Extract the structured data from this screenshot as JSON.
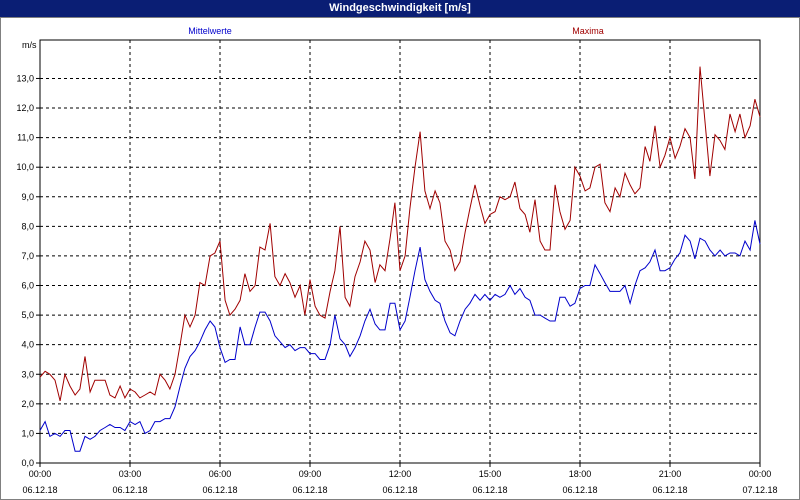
{
  "window": {
    "title": "Windgeschwindigkeit [m/s]"
  },
  "chart_data": {
    "type": "line",
    "title": "Windgeschwindigkeit [m/s]",
    "ylabel": "m/s",
    "xlabel": "",
    "ylim": [
      0,
      14
    ],
    "xlim": [
      0,
      24
    ],
    "grid": true,
    "y_ticks": [
      {
        "value": 0,
        "label": "0,0"
      },
      {
        "value": 1,
        "label": "1,0"
      },
      {
        "value": 2,
        "label": "2,0"
      },
      {
        "value": 3,
        "label": "3,0"
      },
      {
        "value": 4,
        "label": "4,0"
      },
      {
        "value": 5,
        "label": "5,0"
      },
      {
        "value": 6,
        "label": "6,0"
      },
      {
        "value": 7,
        "label": "7,0"
      },
      {
        "value": 8,
        "label": "8,0"
      },
      {
        "value": 9,
        "label": "9,0"
      },
      {
        "value": 10,
        "label": "10,0"
      },
      {
        "value": 11,
        "label": "11,0"
      },
      {
        "value": 12,
        "label": "12,0"
      },
      {
        "value": 13,
        "label": "13,0"
      }
    ],
    "x_ticks": [
      {
        "value": 0,
        "time": "00:00",
        "date": "06.12.18"
      },
      {
        "value": 3,
        "time": "03:00",
        "date": "06.12.18"
      },
      {
        "value": 6,
        "time": "06:00",
        "date": "06.12.18"
      },
      {
        "value": 9,
        "time": "09:00",
        "date": "06.12.18"
      },
      {
        "value": 12,
        "time": "12:00",
        "date": "06.12.18"
      },
      {
        "value": 15,
        "time": "15:00",
        "date": "06.12.18"
      },
      {
        "value": 18,
        "time": "18:00",
        "date": "06.12.18"
      },
      {
        "value": 21,
        "time": "21:00",
        "date": "06.12.18"
      },
      {
        "value": 24,
        "time": "00:00",
        "date": "07.12.18"
      }
    ],
    "series": [
      {
        "name": "Mittelwerte",
        "color": "#0000cc",
        "points": [
          [
            0,
            1.1
          ],
          [
            0.17,
            1.4
          ],
          [
            0.33,
            0.9
          ],
          [
            0.5,
            1.0
          ],
          [
            0.67,
            0.9
          ],
          [
            0.83,
            1.1
          ],
          [
            1,
            1.1
          ],
          [
            1.17,
            0.4
          ],
          [
            1.33,
            0.4
          ],
          [
            1.5,
            0.9
          ],
          [
            1.67,
            0.8
          ],
          [
            1.83,
            0.9
          ],
          [
            2,
            1.1
          ],
          [
            2.17,
            1.2
          ],
          [
            2.33,
            1.3
          ],
          [
            2.5,
            1.2
          ],
          [
            2.67,
            1.2
          ],
          [
            2.83,
            1.1
          ],
          [
            3,
            1.4
          ],
          [
            3.17,
            1.3
          ],
          [
            3.33,
            1.4
          ],
          [
            3.5,
            1.0
          ],
          [
            3.67,
            1.1
          ],
          [
            3.83,
            1.4
          ],
          [
            4,
            1.4
          ],
          [
            4.17,
            1.5
          ],
          [
            4.33,
            1.5
          ],
          [
            4.5,
            1.9
          ],
          [
            4.67,
            2.6
          ],
          [
            4.83,
            3.2
          ],
          [
            5,
            3.6
          ],
          [
            5.17,
            3.8
          ],
          [
            5.33,
            4.1
          ],
          [
            5.5,
            4.5
          ],
          [
            5.67,
            4.8
          ],
          [
            5.83,
            4.6
          ],
          [
            6,
            3.9
          ],
          [
            6.17,
            3.4
          ],
          [
            6.33,
            3.5
          ],
          [
            6.5,
            3.5
          ],
          [
            6.67,
            4.6
          ],
          [
            6.83,
            4.0
          ],
          [
            7,
            4.0
          ],
          [
            7.17,
            4.6
          ],
          [
            7.33,
            5.1
          ],
          [
            7.5,
            5.1
          ],
          [
            7.67,
            4.8
          ],
          [
            7.83,
            4.3
          ],
          [
            8,
            4.1
          ],
          [
            8.17,
            3.9
          ],
          [
            8.33,
            4.0
          ],
          [
            8.5,
            3.8
          ],
          [
            8.67,
            3.9
          ],
          [
            8.83,
            3.9
          ],
          [
            9,
            3.7
          ],
          [
            9.17,
            3.7
          ],
          [
            9.33,
            3.5
          ],
          [
            9.5,
            3.5
          ],
          [
            9.67,
            4.0
          ],
          [
            9.83,
            5.0
          ],
          [
            10,
            4.2
          ],
          [
            10.17,
            4.0
          ],
          [
            10.33,
            3.6
          ],
          [
            10.5,
            3.9
          ],
          [
            10.67,
            4.3
          ],
          [
            10.83,
            4.8
          ],
          [
            11,
            5.2
          ],
          [
            11.17,
            4.7
          ],
          [
            11.33,
            4.5
          ],
          [
            11.5,
            4.5
          ],
          [
            11.67,
            5.4
          ],
          [
            11.83,
            5.4
          ],
          [
            12,
            4.5
          ],
          [
            12.17,
            4.8
          ],
          [
            12.33,
            5.6
          ],
          [
            12.5,
            6.5
          ],
          [
            12.67,
            7.3
          ],
          [
            12.83,
            6.2
          ],
          [
            13,
            5.8
          ],
          [
            13.17,
            5.5
          ],
          [
            13.33,
            5.4
          ],
          [
            13.5,
            4.8
          ],
          [
            13.67,
            4.4
          ],
          [
            13.83,
            4.3
          ],
          [
            14,
            4.8
          ],
          [
            14.17,
            5.2
          ],
          [
            14.33,
            5.4
          ],
          [
            14.5,
            5.7
          ],
          [
            14.67,
            5.5
          ],
          [
            14.83,
            5.7
          ],
          [
            15,
            5.5
          ],
          [
            15.17,
            5.7
          ],
          [
            15.33,
            5.6
          ],
          [
            15.5,
            5.7
          ],
          [
            15.67,
            6.0
          ],
          [
            15.83,
            5.7
          ],
          [
            16,
            5.9
          ],
          [
            16.17,
            5.6
          ],
          [
            16.33,
            5.5
          ],
          [
            16.5,
            5.0
          ],
          [
            16.67,
            5.0
          ],
          [
            16.83,
            4.9
          ],
          [
            17,
            4.8
          ],
          [
            17.17,
            4.8
          ],
          [
            17.33,
            5.6
          ],
          [
            17.5,
            5.6
          ],
          [
            17.67,
            5.3
          ],
          [
            17.83,
            5.4
          ],
          [
            18,
            5.9
          ],
          [
            18.17,
            6.0
          ],
          [
            18.33,
            6.0
          ],
          [
            18.5,
            6.7
          ],
          [
            18.67,
            6.4
          ],
          [
            18.83,
            6.1
          ],
          [
            19,
            5.8
          ],
          [
            19.17,
            5.8
          ],
          [
            19.33,
            5.8
          ],
          [
            19.5,
            6.0
          ],
          [
            19.67,
            5.4
          ],
          [
            19.83,
            6.0
          ],
          [
            20,
            6.5
          ],
          [
            20.17,
            6.6
          ],
          [
            20.33,
            6.8
          ],
          [
            20.5,
            7.2
          ],
          [
            20.67,
            6.5
          ],
          [
            20.83,
            6.5
          ],
          [
            21,
            6.6
          ],
          [
            21.17,
            6.9
          ],
          [
            21.33,
            7.1
          ],
          [
            21.5,
            7.7
          ],
          [
            21.67,
            7.5
          ],
          [
            21.83,
            6.9
          ],
          [
            22,
            7.6
          ],
          [
            22.17,
            7.5
          ],
          [
            22.33,
            7.2
          ],
          [
            22.5,
            7.0
          ],
          [
            22.67,
            7.2
          ],
          [
            22.83,
            7.0
          ],
          [
            23,
            7.1
          ],
          [
            23.17,
            7.1
          ],
          [
            23.33,
            7.0
          ],
          [
            23.5,
            7.5
          ],
          [
            23.67,
            7.2
          ],
          [
            23.83,
            8.2
          ],
          [
            24,
            7.4
          ]
        ]
      },
      {
        "name": "Maxima",
        "color": "#a00000",
        "points": [
          [
            0,
            2.9
          ],
          [
            0.17,
            3.1
          ],
          [
            0.33,
            3.0
          ],
          [
            0.5,
            2.8
          ],
          [
            0.67,
            2.1
          ],
          [
            0.83,
            3.0
          ],
          [
            1,
            2.6
          ],
          [
            1.17,
            2.3
          ],
          [
            1.33,
            2.5
          ],
          [
            1.5,
            3.6
          ],
          [
            1.67,
            2.4
          ],
          [
            1.83,
            2.8
          ],
          [
            2,
            2.8
          ],
          [
            2.17,
            2.8
          ],
          [
            2.33,
            2.3
          ],
          [
            2.5,
            2.2
          ],
          [
            2.67,
            2.6
          ],
          [
            2.83,
            2.2
          ],
          [
            3,
            2.5
          ],
          [
            3.17,
            2.4
          ],
          [
            3.33,
            2.2
          ],
          [
            3.5,
            2.3
          ],
          [
            3.67,
            2.4
          ],
          [
            3.83,
            2.3
          ],
          [
            4,
            3.0
          ],
          [
            4.17,
            2.8
          ],
          [
            4.33,
            2.5
          ],
          [
            4.5,
            3.0
          ],
          [
            4.67,
            4.0
          ],
          [
            4.83,
            5.0
          ],
          [
            5,
            4.6
          ],
          [
            5.17,
            5.0
          ],
          [
            5.33,
            6.1
          ],
          [
            5.5,
            6.0
          ],
          [
            5.67,
            7.0
          ],
          [
            5.83,
            7.1
          ],
          [
            6,
            7.5
          ],
          [
            6.17,
            5.5
          ],
          [
            6.33,
            5.0
          ],
          [
            6.5,
            5.2
          ],
          [
            6.67,
            5.5
          ],
          [
            6.83,
            6.4
          ],
          [
            7,
            5.8
          ],
          [
            7.17,
            6.0
          ],
          [
            7.33,
            7.3
          ],
          [
            7.5,
            7.2
          ],
          [
            7.67,
            8.1
          ],
          [
            7.83,
            6.3
          ],
          [
            8,
            6.0
          ],
          [
            8.17,
            6.4
          ],
          [
            8.33,
            6.1
          ],
          [
            8.5,
            5.6
          ],
          [
            8.67,
            6.0
          ],
          [
            8.83,
            5.0
          ],
          [
            9,
            6.2
          ],
          [
            9.17,
            5.3
          ],
          [
            9.33,
            5.0
          ],
          [
            9.5,
            4.9
          ],
          [
            9.67,
            5.8
          ],
          [
            9.83,
            6.5
          ],
          [
            10,
            8.0
          ],
          [
            10.17,
            5.6
          ],
          [
            10.33,
            5.3
          ],
          [
            10.5,
            6.3
          ],
          [
            10.67,
            6.8
          ],
          [
            10.83,
            7.5
          ],
          [
            11,
            7.2
          ],
          [
            11.17,
            6.1
          ],
          [
            11.33,
            6.7
          ],
          [
            11.5,
            6.5
          ],
          [
            11.67,
            7.6
          ],
          [
            11.83,
            8.8
          ],
          [
            12,
            6.5
          ],
          [
            12.17,
            7.0
          ],
          [
            12.33,
            8.6
          ],
          [
            12.5,
            10.0
          ],
          [
            12.67,
            11.2
          ],
          [
            12.83,
            9.2
          ],
          [
            13,
            8.6
          ],
          [
            13.17,
            9.2
          ],
          [
            13.33,
            8.8
          ],
          [
            13.5,
            7.5
          ],
          [
            13.67,
            7.2
          ],
          [
            13.83,
            6.5
          ],
          [
            14,
            6.8
          ],
          [
            14.17,
            7.8
          ],
          [
            14.33,
            8.6
          ],
          [
            14.5,
            9.4
          ],
          [
            14.67,
            8.7
          ],
          [
            14.83,
            8.1
          ],
          [
            15,
            8.4
          ],
          [
            15.17,
            8.5
          ],
          [
            15.33,
            9.0
          ],
          [
            15.5,
            8.9
          ],
          [
            15.67,
            9.0
          ],
          [
            15.83,
            9.5
          ],
          [
            16,
            8.6
          ],
          [
            16.17,
            8.4
          ],
          [
            16.33,
            7.8
          ],
          [
            16.5,
            8.9
          ],
          [
            16.67,
            7.5
          ],
          [
            16.83,
            7.2
          ],
          [
            17,
            7.2
          ],
          [
            17.17,
            9.4
          ],
          [
            17.33,
            8.5
          ],
          [
            17.5,
            7.9
          ],
          [
            17.67,
            8.2
          ],
          [
            17.83,
            10.0
          ],
          [
            18,
            9.7
          ],
          [
            18.17,
            9.2
          ],
          [
            18.33,
            9.3
          ],
          [
            18.5,
            10.0
          ],
          [
            18.67,
            10.1
          ],
          [
            18.83,
            8.8
          ],
          [
            19,
            8.5
          ],
          [
            19.17,
            9.3
          ],
          [
            19.33,
            9.0
          ],
          [
            19.5,
            9.8
          ],
          [
            19.67,
            9.4
          ],
          [
            19.83,
            9.1
          ],
          [
            20,
            9.3
          ],
          [
            20.17,
            10.7
          ],
          [
            20.33,
            10.2
          ],
          [
            20.5,
            11.4
          ],
          [
            20.67,
            10.0
          ],
          [
            20.83,
            10.4
          ],
          [
            21,
            11.0
          ],
          [
            21.17,
            10.3
          ],
          [
            21.33,
            10.7
          ],
          [
            21.5,
            11.3
          ],
          [
            21.67,
            11.0
          ],
          [
            21.83,
            9.6
          ],
          [
            22,
            13.4
          ],
          [
            22.17,
            11.5
          ],
          [
            22.33,
            9.7
          ],
          [
            22.5,
            11.1
          ],
          [
            22.67,
            10.9
          ],
          [
            22.83,
            10.6
          ],
          [
            23,
            11.8
          ],
          [
            23.17,
            11.2
          ],
          [
            23.33,
            11.8
          ],
          [
            23.5,
            11.0
          ],
          [
            23.67,
            11.4
          ],
          [
            23.83,
            12.3
          ],
          [
            24,
            11.7
          ]
        ]
      }
    ]
  }
}
